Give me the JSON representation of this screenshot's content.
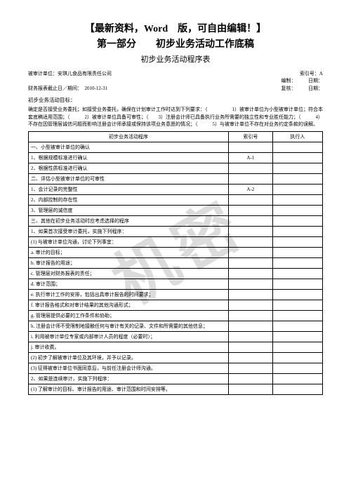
{
  "watermark": "机密",
  "titles": {
    "main": "【最新资料，Word　版，可自由编辑！】",
    "sub": "第一部分　　初步业务活动工作底稿",
    "tableTitle": "初步业务活动程序表"
  },
  "header": {
    "line1Left": "被审计单位：安琪儿食品有限责任公司",
    "line1Right": "索引号：A\n编制：　　　日期：",
    "line2Left": "财务报表截止日／期间：　2010-12-31",
    "line2Right": "复核：　　　日期："
  },
  "sectionLabel": "初步业务活动目标：",
  "narrative": "确定是否接受业务委托；如接受业务委托，确保在计划审计工作时达到下列要求：（　　　　　1）被审计单位为小型被审计单位；符合本套底稿适用范围；（　　　2）被审计单位具备可审性；（　　3）注册会计师已具备执行业务所需要的独立性和专业胜任能力；（　　　4）不存在因管理层诚信问题而影响注册会计师承接或保持该项业务意愿的情况；（　　　5）与被审计单位不存在对业务约定条款的误解。",
  "tableHeaders": {
    "procedure": "初步业务活动程序",
    "index": "索引号",
    "executor": "执行人"
  },
  "rows": [
    {
      "proc": "一、小型被审计单位的确认",
      "idx": ""
    },
    {
      "proc": "1、根据规模标准进行确认",
      "idx": "A-1"
    },
    {
      "proc": "2、根据性质标准进行确认",
      "idx": ""
    },
    {
      "proc": "二、评估小型被审计单位的可审性",
      "idx": ""
    },
    {
      "proc": "1、会计记录的完整性",
      "idx": "A-2"
    },
    {
      "proc": "2、内部控制的存在性",
      "idx": ""
    },
    {
      "proc": "3、管理层的诚信度",
      "idx": ""
    },
    {
      "proc": "三、其他在初步业务活动时应考虑选择的程序",
      "idx": ""
    },
    {
      "proc": "1、如果首次接受审计委托，实施下列程序：",
      "idx": ""
    },
    {
      "proc": "(1) 与被审计单位沟通，讨论下列事宜：",
      "idx": ""
    },
    {
      "proc": "a. 审计的目标；",
      "idx": ""
    },
    {
      "proc": "b. 审计报告的用途；",
      "idx": ""
    },
    {
      "proc": "c. 管理层对财务报表的责任；",
      "idx": ""
    },
    {
      "proc": "d. 审计范围；",
      "idx": ""
    },
    {
      "proc": "e. 执行审计工作的安排，包括出具审计报告的时间要求；",
      "idx": ""
    },
    {
      "proc": "f. 审计报告格式和对审计结果的其他沟通形式；",
      "idx": ""
    },
    {
      "proc": "g. 管理层提供必要的工作条件和协助；",
      "idx": ""
    },
    {
      "proc": "h. 注册会计师不受限制地接触任何与审计有关的记录、文件和所需要的其他信息；",
      "idx": ""
    },
    {
      "proc": "i. 利用被审计单位专家或内部审计人员的程度（必要时）；",
      "idx": ""
    },
    {
      "proc": "j. 审计收费。",
      "idx": ""
    },
    {
      "proc": "(2) 初步了解被审计单位及其环境，并予以记录。",
      "idx": ""
    },
    {
      "proc": "(3) 征得被审计单位书面同意后，与前任注册会计师沟通。",
      "idx": ""
    },
    {
      "proc": "2、如果是连续审计，实施下列程序：",
      "idx": ""
    },
    {
      "proc": "(1) 了解审计的目标、审计报告的用途、审计范围和时间安排等。",
      "idx": ""
    }
  ]
}
